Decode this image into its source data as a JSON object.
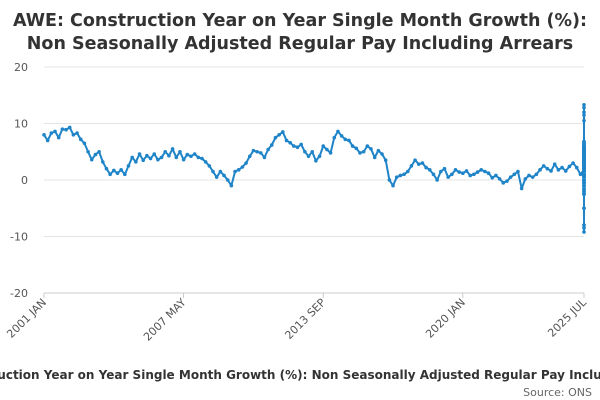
{
  "chart_data": {
    "type": "line",
    "title_lines": [
      "AWE: Construction Year on Year Single Month Growth (%):",
      "Non Seasonally Adjusted Regular Pay Including Arrears"
    ],
    "series": [
      {
        "name": "AWE: Construction Year on Year Single Month Growth (%): Non Seasonally Adjusted Regular Pay Including Arrears",
        "color": "#1f84c8",
        "x_start_year": 2001.0,
        "x_step_years": 0.1667,
        "values": [
          8.0,
          7.0,
          8.3,
          8.6,
          7.5,
          9.0,
          8.9,
          9.3,
          8.0,
          8.3,
          7.2,
          6.5,
          5.0,
          3.6,
          4.5,
          5.0,
          3.2,
          2.0,
          1.0,
          1.7,
          1.2,
          1.8,
          1.0,
          2.5,
          4.0,
          3.2,
          4.6,
          3.5,
          4.3,
          3.8,
          4.6,
          3.6,
          4.0,
          5.0,
          4.3,
          5.5,
          4.0,
          5.0,
          3.6,
          4.5,
          4.2,
          4.6,
          4.0,
          3.8,
          3.2,
          2.5,
          1.5,
          0.5,
          1.5,
          0.8,
          0.0,
          -1.0,
          1.5,
          1.8,
          2.3,
          3.0,
          4.2,
          5.2,
          5.0,
          4.8,
          4.0,
          5.4,
          6.2,
          7.5,
          8.0,
          8.5,
          7.0,
          6.6,
          6.0,
          5.8,
          6.3,
          5.0,
          4.2,
          5.0,
          3.4,
          4.2,
          6.0,
          5.4,
          4.8,
          7.5,
          8.6,
          7.8,
          7.2,
          7.0,
          6.0,
          5.6,
          4.8,
          5.0,
          6.0,
          5.5,
          4.0,
          5.2,
          4.6,
          3.5,
          0.0,
          -1.0,
          0.5,
          0.8,
          1.0,
          1.5,
          2.5,
          3.5,
          2.8,
          3.0,
          2.2,
          1.8,
          1.0,
          0.0,
          1.5,
          2.0,
          0.5,
          1.0,
          1.8,
          1.4,
          1.2,
          1.6,
          0.8,
          1.0,
          1.4,
          1.8,
          1.5,
          1.2,
          0.4,
          0.8,
          0.2,
          -0.5,
          -0.2,
          0.5,
          1.0,
          1.5,
          -1.5,
          0.2,
          0.8,
          0.5,
          1.0,
          1.8,
          2.5,
          2.0,
          1.6,
          2.8,
          1.8,
          2.2,
          1.6,
          2.4,
          3.0,
          2.2,
          1.0,
          1.8,
          0.8,
          0.0,
          -0.3,
          0.5,
          -0.6,
          -1.5,
          -2.5,
          -1.8,
          -1.0,
          0.8,
          -2.2,
          -0.5,
          0.0,
          0.5,
          -1.0,
          -0.5,
          0.0,
          0.8,
          1.5,
          3.0,
          5.0,
          3.5,
          1.8,
          0.0,
          -1.0,
          -2.5,
          -1.0,
          0.5,
          1.0,
          1.5,
          2.0,
          1.0,
          0.5,
          1.5,
          1.0,
          -2.0,
          0.5,
          2.8,
          3.0,
          2.5,
          3.0,
          2.6,
          2.8,
          3.2,
          3.0,
          3.5,
          3.0,
          2.8,
          4.5,
          5.0,
          3.0,
          4.2,
          3.6,
          4.4,
          3.0,
          3.5,
          4.6,
          4.5,
          4.0,
          4.4,
          3.0,
          2.2,
          1.8,
          1.0,
          1.5,
          2.5,
          2.2,
          2.5,
          2.8,
          2.0,
          2.5,
          3.0,
          3.5,
          4.0,
          5.0,
          6.0,
          5.5,
          5.8,
          5.2,
          5.0,
          4.0,
          3.2,
          4.4,
          4.0,
          3.5,
          4.8,
          4.5,
          5.0,
          4.2,
          4.8,
          5.5,
          5.0,
          5.6,
          5.5,
          5.2,
          5.0,
          4.8,
          3.0,
          0.0,
          -2.5,
          -5.0,
          -8.0,
          -8.5,
          -9.2,
          -8.0,
          -5.0,
          -2.0,
          -1.5,
          0.5,
          -1.0,
          0.8,
          1.5,
          2.5,
          1.0,
          2.0,
          1.8,
          1.5,
          12.0,
          13.3,
          12.8,
          10.5,
          11.5,
          4.5,
          3.5,
          4.0,
          3.8,
          2.2,
          1.0,
          3.0,
          4.0,
          4.5,
          5.0,
          5.5,
          4.8,
          5.0,
          5.5,
          5.2,
          5.0,
          5.6,
          6.0,
          5.4,
          5.0,
          4.5,
          5.2,
          6.4,
          5.5,
          6.0,
          5.6,
          6.8,
          6.0,
          5.5,
          6.2,
          5.8,
          5.0,
          4.6,
          3.5,
          4.0,
          3.0,
          2.0,
          3.2,
          2.5,
          3.0,
          4.0,
          4.5,
          5.0,
          4.4,
          4.8,
          4.0,
          5.5,
          6.8,
          6.5,
          6.0,
          6.4,
          5.8,
          5.0,
          5.5,
          4.8,
          5.0,
          6.5,
          5.8,
          5.0,
          4.5,
          4.0,
          3.8,
          4.0,
          3.5
        ]
      }
    ],
    "xlim": [
      2001.0,
      2025.5
    ],
    "ylim": [
      -20,
      20
    ],
    "yticks": [
      -20,
      -10,
      0,
      10,
      20
    ],
    "y_tick_labels": [
      "-20",
      "-10",
      "0",
      "10",
      "20"
    ],
    "xticks": [
      2001.0,
      2007.33,
      2013.67,
      2020.0,
      2025.5
    ],
    "x_tick_labels": [
      "2001 JAN",
      "2007 MAY",
      "2013 SEP",
      "2020 JAN",
      "2025 JUL"
    ],
    "grid": true,
    "legend_position": "bottom",
    "legend_text": "AWE: Construction Year on Year Single Month Growth (%): Non Seasonally Adjusted Regular Pay Including Arrears",
    "source_text": "Source: ONS"
  }
}
